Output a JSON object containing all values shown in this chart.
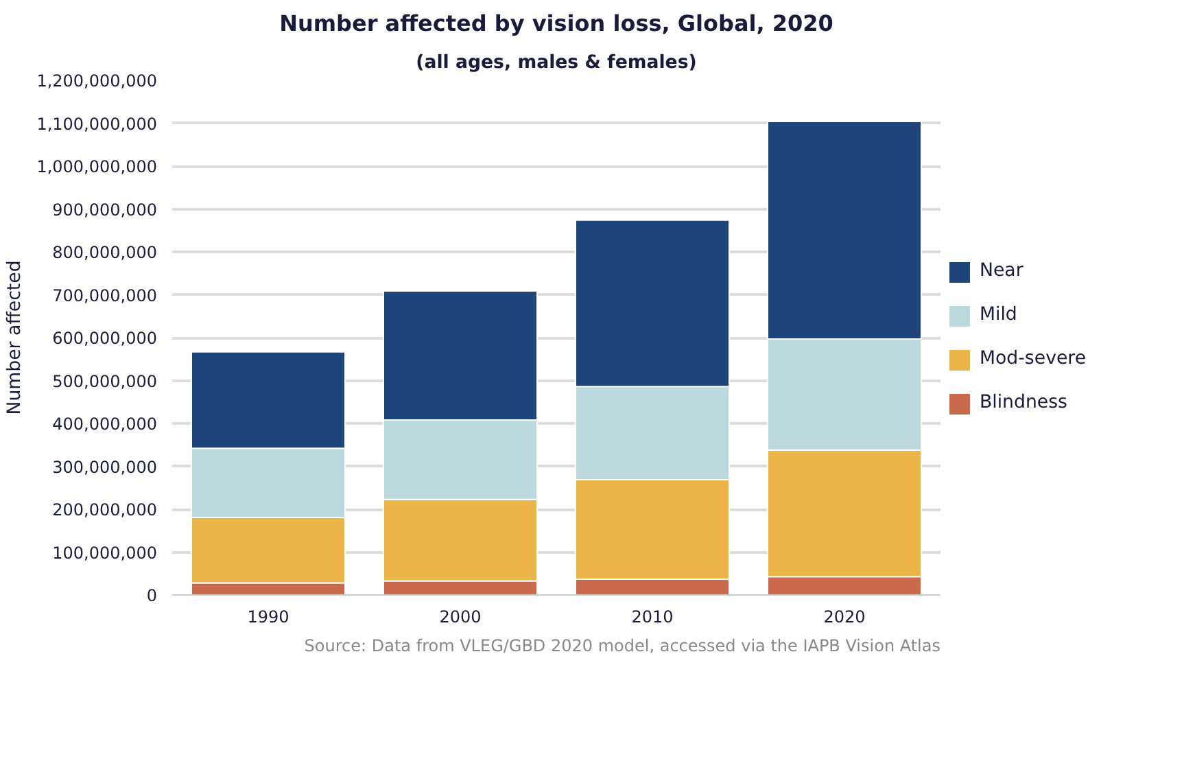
{
  "chart_data": {
    "type": "bar",
    "stacked": true,
    "title": "Number affected by vision loss, Global, 2020",
    "subtitle": "(all ages, males & females)",
    "ylabel": "Number affected",
    "categories": [
      "1990",
      "2000",
      "2010",
      "2020"
    ],
    "series": [
      {
        "name": "Blindness",
        "color": "#c96a4c",
        "values": [
          28000000,
          33000000,
          37000000,
          43000000
        ]
      },
      {
        "name": "Mod-severe",
        "color": "#eab448",
        "values": [
          153000000,
          190000000,
          232000000,
          295000000
        ]
      },
      {
        "name": "Mild",
        "color": "#bcd9dd",
        "values": [
          161000000,
          185000000,
          217000000,
          259000000
        ]
      },
      {
        "name": "Near",
        "color": "#1f4479",
        "values": [
          225000000,
          301000000,
          388000000,
          507000000
        ]
      }
    ],
    "ylim": [
      0,
      1200000000
    ],
    "yticks": [
      0,
      {
        "value": 100000000,
        "label": "100,000,000"
      },
      {
        "value": 200000000,
        "label": "200,000,000"
      },
      {
        "value": 300000000,
        "label": "300,000,000"
      },
      {
        "value": 400000000,
        "label": "400,000,000"
      },
      {
        "value": 500000000,
        "label": "500,000,000"
      },
      {
        "value": 600000000,
        "label": "600,000,000"
      },
      {
        "value": 700000000,
        "label": "700,000,000"
      },
      {
        "value": 800000000,
        "label": "800,000,000"
      },
      {
        "value": 900000000,
        "label": "900,000,000"
      },
      {
        "value": 1000000000,
        "label": "1,000,000,000"
      },
      {
        "value": 1100000000,
        "label": "1,100,000,000"
      },
      {
        "value": 1200000000,
        "label": "1,200,000,000"
      }
    ],
    "grid": "y",
    "legend": "right",
    "annotations": [
      "Source: Data from VLEG/GBD 2020 model, accessed via the IAPB Vision Atlas"
    ]
  }
}
